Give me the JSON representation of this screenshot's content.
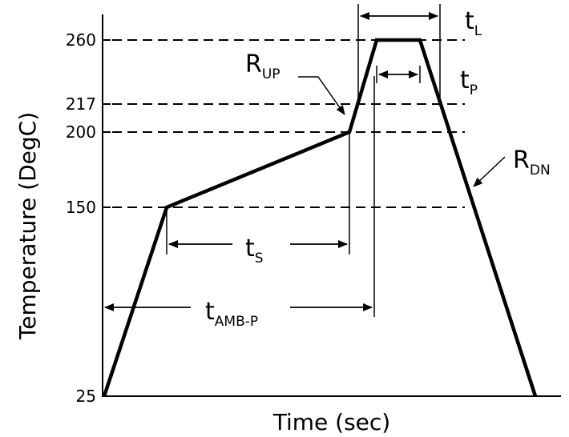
{
  "diagram": {
    "y_axis_title": "Temperature (DegC)",
    "x_axis_title": "Time (sec)",
    "y_ticks": [
      "260",
      "217",
      "200",
      "150",
      "25"
    ],
    "labels": {
      "t_l": {
        "main": "t",
        "sub": "L"
      },
      "t_p": {
        "main": "t",
        "sub": "P"
      },
      "r_up": {
        "main": "R",
        "sub": "UP"
      },
      "r_dn": {
        "main": "R",
        "sub": "DN"
      },
      "t_s": {
        "main": "t",
        "sub": "S"
      },
      "t_amb_p": {
        "main": "t",
        "sub": "AMB-P"
      }
    },
    "colors": {
      "line": "#000000",
      "background": "#ffffff"
    }
  }
}
